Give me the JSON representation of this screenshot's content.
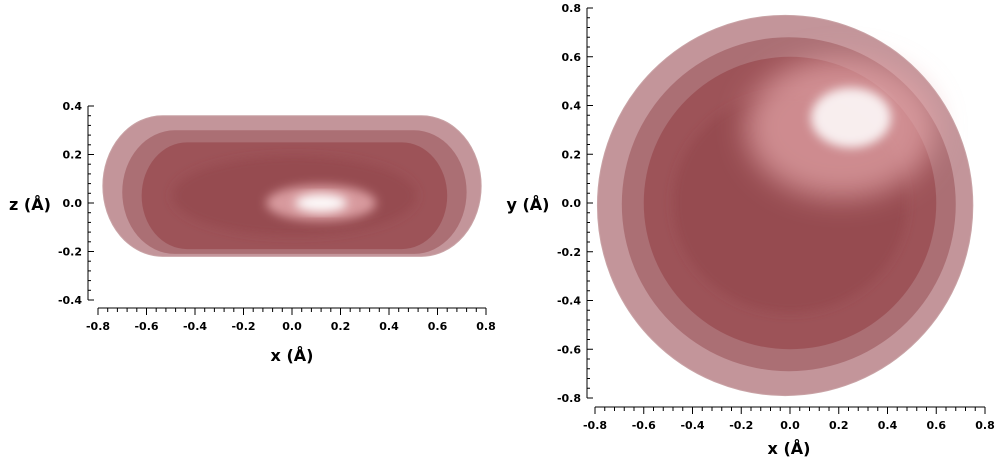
{
  "chart_data": [
    {
      "type": "isosurface",
      "view": "side",
      "xlabel": "x (Å)",
      "ylabel": "z (Å)",
      "xlim": [
        -0.8,
        0.8
      ],
      "ylim": [
        -0.4,
        0.4
      ],
      "x_ticks": [
        "-0.8",
        "-0.6",
        "-0.4",
        "-0.2",
        "0.0",
        "0.2",
        "0.4",
        "0.6",
        "0.8"
      ],
      "y_ticks": [
        "0.4",
        "0.2",
        "0.0",
        "-0.2",
        "-0.4"
      ],
      "x_tick_values": [
        -0.8,
        -0.6,
        -0.4,
        -0.2,
        0.0,
        0.2,
        0.4,
        0.6,
        0.8
      ],
      "y_tick_values": [
        0.4,
        0.2,
        0.0,
        -0.2,
        -0.4
      ],
      "minor_ticks_per_major": 4,
      "surfaces": [
        {
          "x_extent": [
            -0.78,
            0.78
          ],
          "z_extent": [
            -0.22,
            0.36
          ],
          "color": "#b88388"
        },
        {
          "x_extent": [
            -0.7,
            0.72
          ],
          "z_extent": [
            -0.21,
            0.3
          ],
          "color": "#a86a70"
        },
        {
          "x_extent": [
            -0.62,
            0.64
          ],
          "z_extent": [
            -0.19,
            0.25
          ],
          "color": "#9b5055"
        }
      ],
      "highlight": {
        "x": 0.12,
        "z": 0.0
      },
      "grid": false,
      "legend": "none"
    },
    {
      "type": "isosurface",
      "view": "top",
      "xlabel": "x (Å)",
      "ylabel": "y (Å)",
      "xlim": [
        -0.8,
        0.8
      ],
      "ylim": [
        -0.8,
        0.8
      ],
      "x_ticks": [
        "-0.8",
        "-0.6",
        "-0.4",
        "-0.2",
        "0.0",
        "0.2",
        "0.4",
        "0.6",
        "0.8"
      ],
      "y_ticks": [
        "0.8",
        "0.6",
        "0.4",
        "0.2",
        "0.0",
        "-0.2",
        "-0.4",
        "-0.6",
        "-0.8"
      ],
      "x_tick_values": [
        -0.8,
        -0.6,
        -0.4,
        -0.2,
        0.0,
        0.2,
        0.4,
        0.6,
        0.8
      ],
      "y_tick_values": [
        0.8,
        0.6,
        0.4,
        0.2,
        0.0,
        -0.2,
        -0.4,
        -0.6,
        -0.8
      ],
      "minor_ticks_per_major": 4,
      "surfaces": [
        {
          "x_extent": [
            -0.79,
            0.75
          ],
          "y_extent": [
            -0.79,
            0.77
          ],
          "color": "#b88388"
        },
        {
          "x_extent": [
            -0.69,
            0.68
          ],
          "y_extent": [
            -0.69,
            0.68
          ],
          "color": "#a86a70"
        },
        {
          "x_extent": [
            -0.6,
            0.6
          ],
          "y_extent": [
            -0.6,
            0.6
          ],
          "color": "#9b5055"
        }
      ],
      "highlight": {
        "x": 0.25,
        "y": 0.35
      },
      "grid": false,
      "legend": "none"
    }
  ]
}
